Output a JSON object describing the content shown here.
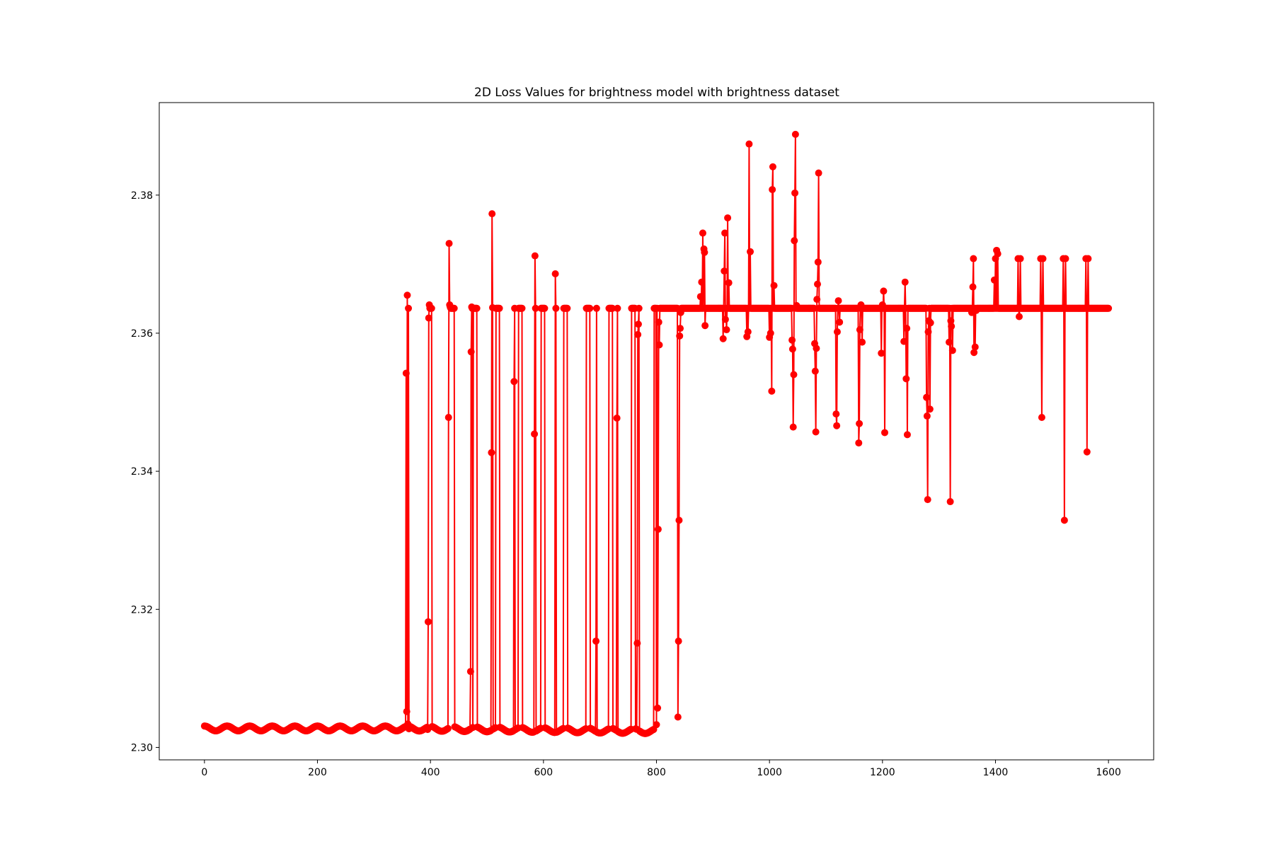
{
  "chart_data": {
    "type": "line",
    "title": "2D Loss Values for brightness model with brightness dataset",
    "xlabel": "",
    "ylabel": "",
    "xlim": [
      -80,
      1680
    ],
    "ylim": [
      2.2982,
      2.3934
    ],
    "xticks": [
      0,
      200,
      400,
      600,
      800,
      1000,
      1200,
      1400,
      1600
    ],
    "yticks": [
      2.3,
      2.32,
      2.34,
      2.36,
      2.38
    ],
    "xtick_labels": [
      "0",
      "200",
      "400",
      "600",
      "800",
      "1000",
      "1200",
      "1400",
      "1600"
    ],
    "ytick_labels": [
      "2.30",
      "2.32",
      "2.34",
      "2.36",
      "2.38"
    ],
    "grid": false,
    "legend": "none",
    "series_color": "#ff0000",
    "marker": "circle",
    "periodic_segment": {
      "period": 40,
      "low_value": 2.3024,
      "high_value": 2.3031,
      "x_range": [
        0,
        355
      ]
    },
    "plateau_value": 2.3636,
    "series": [
      {
        "values": [
          [
            356,
            2.303
          ],
          [
            357,
            2.3542
          ],
          [
            358,
            2.3052
          ],
          [
            359,
            2.3655
          ],
          [
            360,
            2.3034
          ],
          [
            362,
            2.3027
          ],
          [
            395,
            2.3026
          ],
          [
            396,
            2.3182
          ],
          [
            397,
            2.3622
          ],
          [
            398,
            2.3641
          ],
          [
            399,
            2.3636
          ],
          [
            432,
            2.3478
          ],
          [
            433,
            2.373
          ],
          [
            434,
            2.3641
          ],
          [
            435,
            2.3638
          ],
          [
            436,
            2.3636
          ],
          [
            471,
            2.311
          ],
          [
            472,
            2.3573
          ],
          [
            473,
            2.3638
          ],
          [
            474,
            2.3636
          ],
          [
            508,
            2.3427
          ],
          [
            509,
            2.3773
          ],
          [
            510,
            2.3637
          ],
          [
            548,
            2.353
          ],
          [
            549,
            2.3636
          ],
          [
            584,
            2.3454
          ],
          [
            585,
            2.3712
          ],
          [
            586,
            2.3636
          ],
          [
            621,
            2.3686
          ],
          [
            622,
            2.3636
          ],
          [
            693,
            2.3154
          ],
          [
            694,
            2.3636
          ],
          [
            730,
            2.3477
          ],
          [
            731,
            2.3636
          ],
          [
            766,
            2.3151
          ],
          [
            767,
            2.3598
          ],
          [
            768,
            2.3613
          ],
          [
            769,
            2.3636
          ],
          [
            800,
            2.3033
          ],
          [
            802,
            2.3057
          ],
          [
            803,
            2.3316
          ],
          [
            804,
            2.3616
          ],
          [
            805,
            2.3583
          ],
          [
            806,
            2.3636
          ],
          [
            838,
            2.3044
          ],
          [
            839,
            2.3154
          ],
          [
            840,
            2.3329
          ],
          [
            841,
            2.3596
          ],
          [
            842,
            2.3607
          ],
          [
            843,
            2.363
          ],
          [
            845,
            2.3636
          ],
          [
            878,
            2.3653
          ],
          [
            880,
            2.3674
          ],
          [
            882,
            2.3745
          ],
          [
            884,
            2.3722
          ],
          [
            885,
            2.3717
          ],
          [
            886,
            2.3611
          ],
          [
            887,
            2.3636
          ],
          [
            918,
            2.3592
          ],
          [
            920,
            2.369
          ],
          [
            921,
            2.3745
          ],
          [
            922,
            2.362
          ],
          [
            924,
            2.3605
          ],
          [
            926,
            2.3767
          ],
          [
            928,
            2.3673
          ],
          [
            930,
            2.3636
          ],
          [
            960,
            2.3595
          ],
          [
            962,
            2.3602
          ],
          [
            964,
            2.3874
          ],
          [
            966,
            2.3718
          ],
          [
            968,
            2.3636
          ],
          [
            1000,
            2.3594
          ],
          [
            1002,
            2.36
          ],
          [
            1004,
            2.3516
          ],
          [
            1005,
            2.3808
          ],
          [
            1006,
            2.3841
          ],
          [
            1008,
            2.3669
          ],
          [
            1010,
            2.3636
          ],
          [
            1040,
            2.359
          ],
          [
            1041,
            2.3577
          ],
          [
            1042,
            2.3464
          ],
          [
            1043,
            2.354
          ],
          [
            1044,
            2.3734
          ],
          [
            1045,
            2.3803
          ],
          [
            1046,
            2.3888
          ],
          [
            1048,
            2.364
          ],
          [
            1080,
            2.3585
          ],
          [
            1081,
            2.3545
          ],
          [
            1082,
            2.3457
          ],
          [
            1083,
            2.3578
          ],
          [
            1084,
            2.3649
          ],
          [
            1085,
            2.3671
          ],
          [
            1086,
            2.3703
          ],
          [
            1087,
            2.3832
          ],
          [
            1089,
            2.3636
          ],
          [
            1118,
            2.3483
          ],
          [
            1119,
            2.3466
          ],
          [
            1120,
            2.3602
          ],
          [
            1122,
            2.3647
          ],
          [
            1124,
            2.3616
          ],
          [
            1126,
            2.3636
          ],
          [
            1158,
            2.3441
          ],
          [
            1159,
            2.3469
          ],
          [
            1160,
            2.3605
          ],
          [
            1162,
            2.3641
          ],
          [
            1164,
            2.3587
          ],
          [
            1166,
            2.3636
          ],
          [
            1198,
            2.3571
          ],
          [
            1200,
            2.3641
          ],
          [
            1202,
            2.3661
          ],
          [
            1204,
            2.3456
          ],
          [
            1206,
            2.3636
          ],
          [
            1238,
            2.3588
          ],
          [
            1240,
            2.3674
          ],
          [
            1242,
            2.3534
          ],
          [
            1243,
            2.3607
          ],
          [
            1244,
            2.3453
          ],
          [
            1246,
            2.3636
          ],
          [
            1278,
            2.3507
          ],
          [
            1279,
            2.348
          ],
          [
            1280,
            2.3359
          ],
          [
            1281,
            2.3602
          ],
          [
            1282,
            2.3618
          ],
          [
            1284,
            2.349
          ],
          [
            1285,
            2.3615
          ],
          [
            1287,
            2.3636
          ],
          [
            1318,
            2.3587
          ],
          [
            1320,
            2.3356
          ],
          [
            1321,
            2.3618
          ],
          [
            1322,
            2.361
          ],
          [
            1324,
            2.3575
          ],
          [
            1326,
            2.3636
          ],
          [
            1358,
            2.363
          ],
          [
            1360,
            2.3667
          ],
          [
            1361,
            2.3708
          ],
          [
            1362,
            2.3572
          ],
          [
            1364,
            2.358
          ],
          [
            1366,
            2.3633
          ],
          [
            1368,
            2.3636
          ],
          [
            1398,
            2.3677
          ],
          [
            1400,
            2.3708
          ],
          [
            1402,
            2.372
          ],
          [
            1404,
            2.3715
          ],
          [
            1406,
            2.3636
          ],
          [
            1440,
            2.3708
          ],
          [
            1442,
            2.3624
          ],
          [
            1444,
            2.3708
          ],
          [
            1446,
            2.3636
          ],
          [
            1480,
            2.3708
          ],
          [
            1482,
            2.3478
          ],
          [
            1484,
            2.3708
          ],
          [
            1486,
            2.3636
          ],
          [
            1520,
            2.3708
          ],
          [
            1522,
            2.3329
          ],
          [
            1524,
            2.3708
          ],
          [
            1526,
            2.3636
          ],
          [
            1560,
            2.3708
          ],
          [
            1562,
            2.3428
          ],
          [
            1564,
            2.3708
          ],
          [
            1566,
            2.3636
          ],
          [
            1600,
            2.3636
          ]
        ]
      }
    ]
  }
}
